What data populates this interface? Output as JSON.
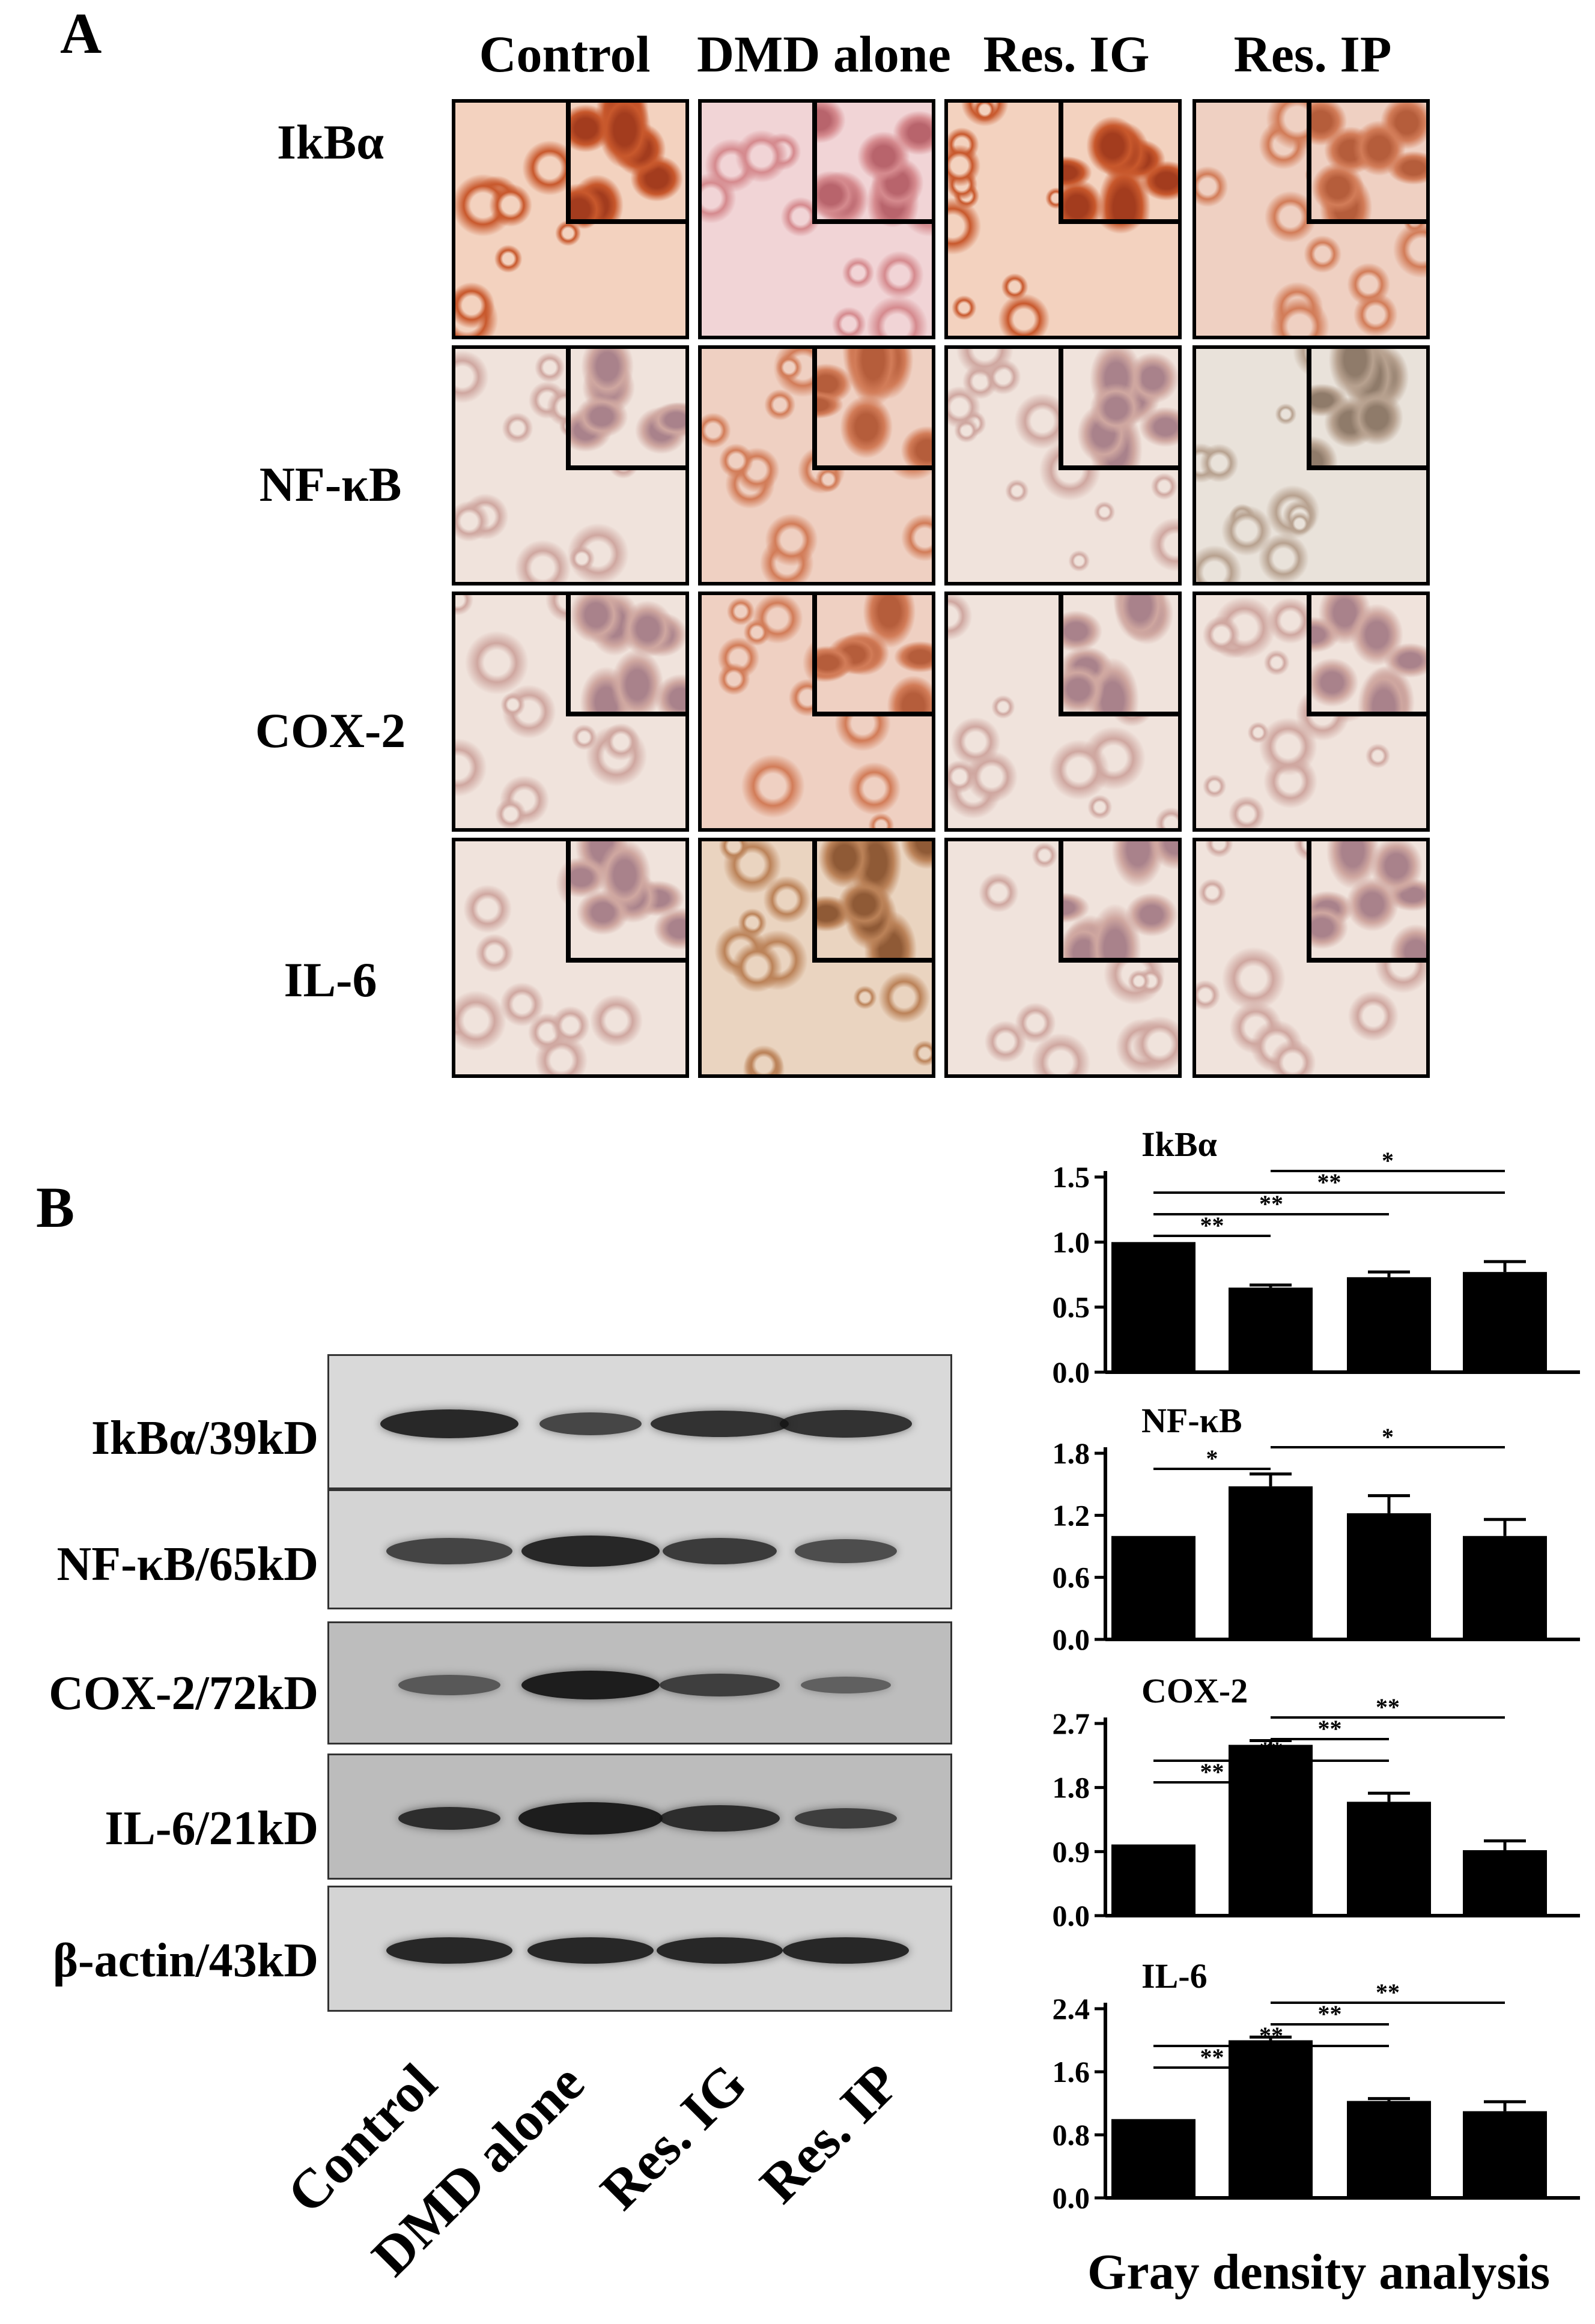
{
  "panel_a": {
    "letter": "A",
    "columns": [
      "Control",
      "DMD alone",
      "Res. IG",
      "Res. IP"
    ],
    "rows": [
      "IkBα",
      "NF-κB",
      "COX-2",
      "IL-6"
    ]
  },
  "panel_b": {
    "letter": "B",
    "blot_labels": [
      "IkBα/39kD",
      "NF-κB/65kD",
      "COX-2/72kD",
      "IL-6/21kD",
      "β-actin/43kD"
    ],
    "lane_labels": [
      "Control",
      "DMD alone",
      "Res. IG",
      "Res. IP"
    ],
    "footer": "Gray density analysis"
  },
  "chart_data": [
    {
      "type": "bar",
      "title": "IkBα",
      "categories": [
        "Control",
        "DMD alone",
        "Res. IG",
        "Res. IP"
      ],
      "values": [
        1.0,
        0.65,
        0.73,
        0.77
      ],
      "errors": [
        0.0,
        0.02,
        0.04,
        0.08
      ],
      "ylim": [
        0,
        1.5
      ],
      "yticks": [
        "0.0",
        "0.5",
        "1.0",
        "1.5"
      ],
      "significance": [
        {
          "from": 1,
          "to": 2,
          "label": "**"
        },
        {
          "from": 1,
          "to": 3,
          "label": "**"
        },
        {
          "from": 1,
          "to": 4,
          "label": "**"
        },
        {
          "from": 2,
          "to": 4,
          "label": "*"
        }
      ]
    },
    {
      "type": "bar",
      "title": "NF-κB",
      "categories": [
        "Control",
        "DMD alone",
        "Res. IG",
        "Res. IP"
      ],
      "values": [
        1.0,
        1.48,
        1.22,
        1.0
      ],
      "errors": [
        0.0,
        0.12,
        0.17,
        0.16
      ],
      "ylim": [
        0,
        1.8
      ],
      "yticks": [
        "0.0",
        "0.6",
        "1.2",
        "1.8"
      ],
      "significance": [
        {
          "from": 1,
          "to": 2,
          "label": "*"
        },
        {
          "from": 2,
          "to": 4,
          "label": "*"
        }
      ]
    },
    {
      "type": "bar",
      "title": "COX-2",
      "categories": [
        "Control",
        "DMD alone",
        "Res. IG",
        "Res. IP"
      ],
      "values": [
        1.0,
        2.4,
        1.6,
        0.92
      ],
      "errors": [
        0.0,
        0.06,
        0.12,
        0.13
      ],
      "ylim": [
        0,
        2.7
      ],
      "yticks": [
        "0.0",
        "0.9",
        "1.8",
        "2.7"
      ],
      "significance": [
        {
          "from": 1,
          "to": 2,
          "label": "**"
        },
        {
          "from": 1,
          "to": 3,
          "label": "**"
        },
        {
          "from": 2,
          "to": 3,
          "label": "**"
        },
        {
          "from": 2,
          "to": 4,
          "label": "**"
        }
      ]
    },
    {
      "type": "bar",
      "title": "IL-6",
      "categories": [
        "Control",
        "DMD alone",
        "Res. IG",
        "Res. IP"
      ],
      "values": [
        1.0,
        2.0,
        1.23,
        1.1
      ],
      "errors": [
        0.0,
        0.04,
        0.03,
        0.12
      ],
      "ylim": [
        0,
        2.4
      ],
      "yticks": [
        "0.0",
        "0.8",
        "1.6",
        "2.4"
      ],
      "significance": [
        {
          "from": 1,
          "to": 2,
          "label": "**"
        },
        {
          "from": 1,
          "to": 3,
          "label": "**"
        },
        {
          "from": 2,
          "to": 3,
          "label": "**"
        },
        {
          "from": 2,
          "to": 4,
          "label": "**"
        }
      ]
    }
  ],
  "colors": {
    "stain_strong": "#c85a2e",
    "stain_pink": "#d9a0a0",
    "stain_pale": "#e2cfc5",
    "bar_fill": "#000000"
  }
}
